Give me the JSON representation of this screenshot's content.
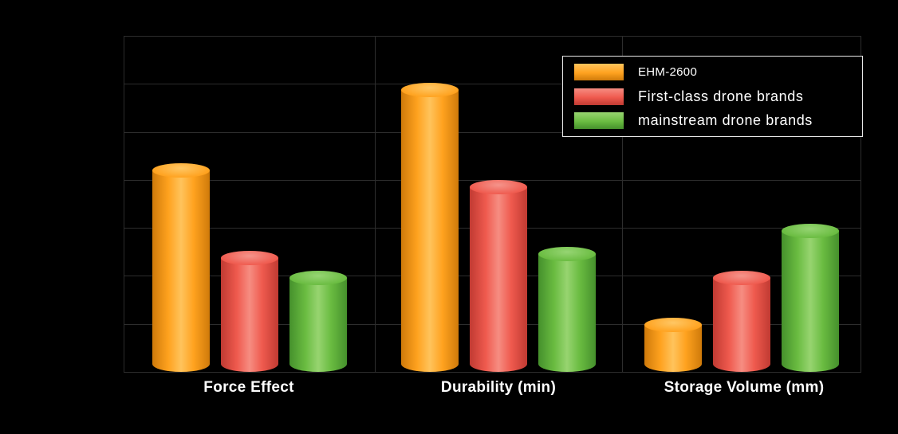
{
  "chart_data": {
    "type": "bar",
    "title": "",
    "xlabel": "",
    "ylabel": "",
    "categories": [
      "Force Effect",
      "Durability (min)",
      "Storage Volume (mm)"
    ],
    "series": [
      {
        "name": "EHM-2600",
        "values": [
          60,
          84,
          14
        ],
        "color": "#ffa21f",
        "color_dark": "#cf7a0a",
        "color_light": "#ffc35c",
        "color_top": "#ffc764"
      },
      {
        "name": "First-class drone brands",
        "values": [
          34,
          55,
          28
        ],
        "color": "#ef5a4e",
        "color_dark": "#c03a32",
        "color_light": "#f68d82",
        "color_top": "#f5948b"
      },
      {
        "name": "mainstream drone brands",
        "values": [
          28,
          35,
          42
        ],
        "color": "#6abc41",
        "color_dark": "#45902c",
        "color_light": "#97d470",
        "color_top": "#96d573"
      }
    ],
    "ylim": [
      0,
      100
    ],
    "grid": true,
    "grid_color": "#2d2d2d",
    "legend_position": "top-right",
    "background_color": "#000000",
    "text_color": "#ffffff"
  }
}
